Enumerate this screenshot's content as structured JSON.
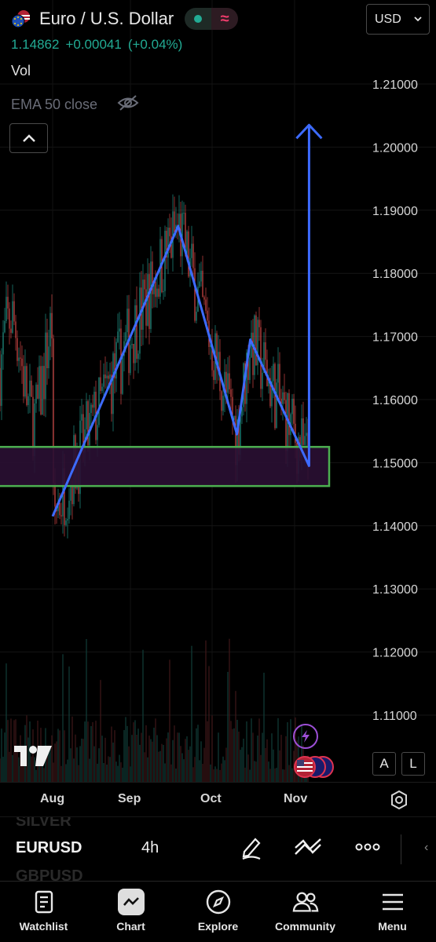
{
  "header": {
    "title": "Euro / U.S. Dollar",
    "price": "1.14862",
    "change": "+0.00041",
    "change_pct": "(+0.04%)",
    "vol_label": "Vol",
    "ema_label": "EMA 50 close",
    "currency": "USD"
  },
  "colors": {
    "background": "#000000",
    "up": "#26a69a",
    "down": "#ef5350",
    "pattern_line": "#3d6bff",
    "zone_fill": "#2a0f33",
    "zone_border": "#4caf50"
  },
  "chart_data": {
    "type": "line",
    "title": "Euro / U.S. Dollar",
    "xlabel": "",
    "ylabel": "",
    "x_ticks": [
      "Aug",
      "Sep",
      "Oct",
      "Nov"
    ],
    "y_ticks": [
      "1.21000",
      "1.20000",
      "1.19000",
      "1.18000",
      "1.17000",
      "1.16000",
      "1.15000",
      "1.14000",
      "1.13000",
      "1.12000",
      "1.11000"
    ],
    "ylim": [
      1.1,
      1.2165
    ],
    "grid": true,
    "series": [
      {
        "name": "",
        "points": [
          {
            "x": "2025-08-01",
            "y": 1.1415
          },
          {
            "x": "2025-09-17",
            "y": 1.1875
          },
          {
            "x": "2025-10-09",
            "y": 1.1545
          },
          {
            "x": "2025-10-14",
            "y": 1.1695
          },
          {
            "x": "2025-11-05",
            "y": 1.1495
          },
          {
            "x": "2025-11-05",
            "y": 1.2035
          }
        ]
      }
    ],
    "zones": [
      {
        "y_low": 1.1463,
        "y_high": 1.1525
      }
    ],
    "last_price": 1.14862
  },
  "time_axis": {
    "labels": [
      "Aug",
      "Sep",
      "Oct",
      "Nov"
    ]
  },
  "symbol_bar": {
    "ghost_prev": "SILVER",
    "symbol": "EURUSD",
    "interval": "4h",
    "ghost_next": "GBPUSD"
  },
  "right_buttons": {
    "a": "A",
    "l": "L"
  },
  "nav": [
    {
      "label": "Watchlist",
      "icon": "watchlist-icon"
    },
    {
      "label": "Chart",
      "icon": "chart-icon"
    },
    {
      "label": "Explore",
      "icon": "compass-icon"
    },
    {
      "label": "Community",
      "icon": "community-icon"
    },
    {
      "label": "Menu",
      "icon": "menu-icon"
    }
  ]
}
